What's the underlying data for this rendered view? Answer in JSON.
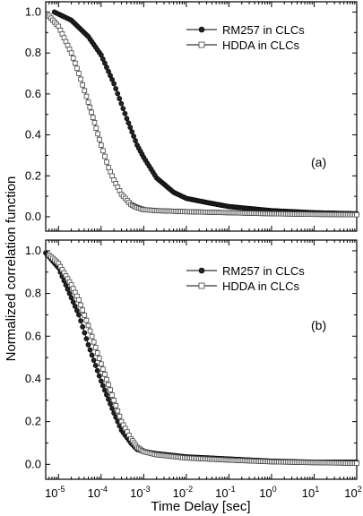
{
  "chart_data": [
    {
      "type": "scatter",
      "panel_label": "(a)",
      "ylabel": "Normalized correlation function",
      "xscale": "log",
      "xlim": [
        5e-06,
        100
      ],
      "ylim": [
        -0.07,
        1.05
      ],
      "yticks": [
        "0.0",
        "0.2",
        "0.4",
        "0.6",
        "0.8",
        "1.0"
      ],
      "legend": {
        "position": "top-right"
      },
      "series": [
        {
          "name": "RM257 in CLCs",
          "marker": "filled-circle",
          "x": [
            8e-06,
            1e-05,
            2e-05,
            5e-05,
            0.0001,
            0.0002,
            0.0004,
            0.0007,
            0.001,
            0.002,
            0.005,
            0.01,
            0.03,
            0.1,
            1,
            10,
            100
          ],
          "y": [
            1.0,
            0.99,
            0.96,
            0.88,
            0.79,
            0.65,
            0.48,
            0.35,
            0.29,
            0.19,
            0.12,
            0.09,
            0.07,
            0.05,
            0.03,
            0.02,
            0.015
          ]
        },
        {
          "name": "HDDA in CLCs",
          "marker": "open-square",
          "x": [
            6e-06,
            1e-05,
            2e-05,
            3e-05,
            5e-05,
            7e-05,
            0.0001,
            0.00015,
            0.0002,
            0.0003,
            0.0005,
            0.0007,
            0.001,
            0.002,
            0.01,
            0.1,
            1,
            10,
            100
          ],
          "y": [
            0.98,
            0.93,
            0.8,
            0.7,
            0.56,
            0.46,
            0.35,
            0.24,
            0.18,
            0.11,
            0.06,
            0.045,
            0.035,
            0.03,
            0.025,
            0.02,
            0.015,
            0.012,
            0.01
          ]
        }
      ]
    },
    {
      "type": "scatter",
      "panel_label": "(b)",
      "xlabel": "Time Delay [sec]",
      "xscale": "log",
      "xlim": [
        5e-06,
        100
      ],
      "ylim": [
        -0.07,
        1.05
      ],
      "xticks": [
        "10-5",
        "10-4",
        "10-3",
        "10-2",
        "10-1",
        "100",
        "101",
        "102"
      ],
      "yticks": [
        "0.0",
        "0.2",
        "0.4",
        "0.6",
        "0.8",
        "1.0"
      ],
      "legend": {
        "position": "top-right"
      },
      "series": [
        {
          "name": "RM257 in CLCs",
          "marker": "filled-circle",
          "x": [
            5e-06,
            1e-05,
            2e-05,
            3e-05,
            5e-05,
            0.0001,
            0.0002,
            0.0003,
            0.0005,
            0.0007,
            0.001,
            0.002,
            0.01,
            0.1,
            1,
            10,
            100
          ],
          "y": [
            0.99,
            0.92,
            0.78,
            0.7,
            0.56,
            0.39,
            0.24,
            0.16,
            0.1,
            0.07,
            0.06,
            0.05,
            0.035,
            0.025,
            0.015,
            0.01,
            0.01
          ]
        },
        {
          "name": "HDDA in CLCs",
          "marker": "open-square",
          "x": [
            6e-06,
            1e-05,
            2e-05,
            3e-05,
            5e-05,
            0.0001,
            0.0002,
            0.0003,
            0.0005,
            0.0007,
            0.001,
            0.002,
            0.01,
            0.1,
            1,
            10,
            100
          ],
          "y": [
            0.98,
            0.94,
            0.84,
            0.77,
            0.65,
            0.47,
            0.3,
            0.2,
            0.12,
            0.08,
            0.06,
            0.045,
            0.03,
            0.02,
            0.012,
            0.008,
            0.005
          ]
        }
      ]
    }
  ]
}
